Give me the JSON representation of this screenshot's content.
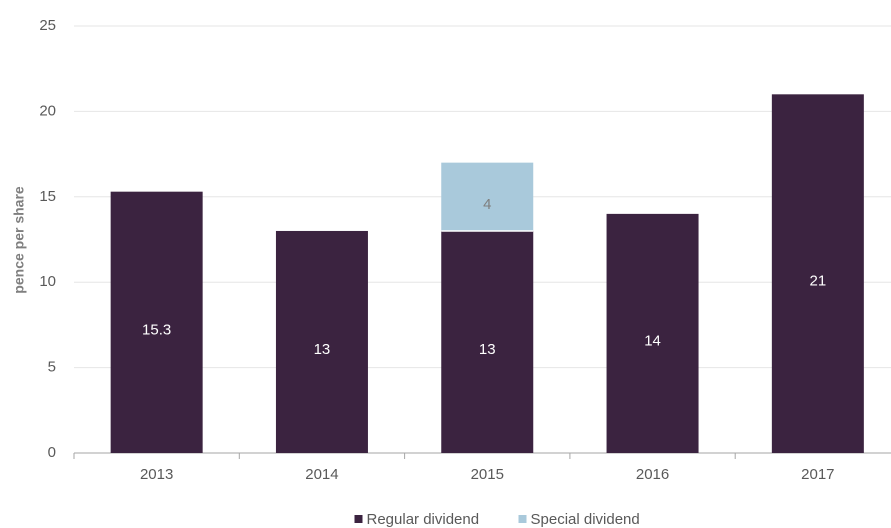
{
  "chart_data": {
    "type": "stacked_bar",
    "y_label": "pence per share",
    "categories": [
      "2013",
      "2014",
      "2015",
      "2016",
      "2017"
    ],
    "series": [
      {
        "name": "Regular dividend",
        "color": "#3b2340",
        "values": [
          15.3,
          13,
          13,
          14,
          21
        ]
      },
      {
        "name": "Special dividend",
        "color": "#a9c9db",
        "values": [
          null,
          null,
          4,
          null,
          null
        ]
      }
    ],
    "ylim": [
      0,
      25
    ],
    "yticks": [
      0,
      5,
      10,
      15,
      20,
      25
    ],
    "grid": true,
    "legend": "bottom"
  }
}
